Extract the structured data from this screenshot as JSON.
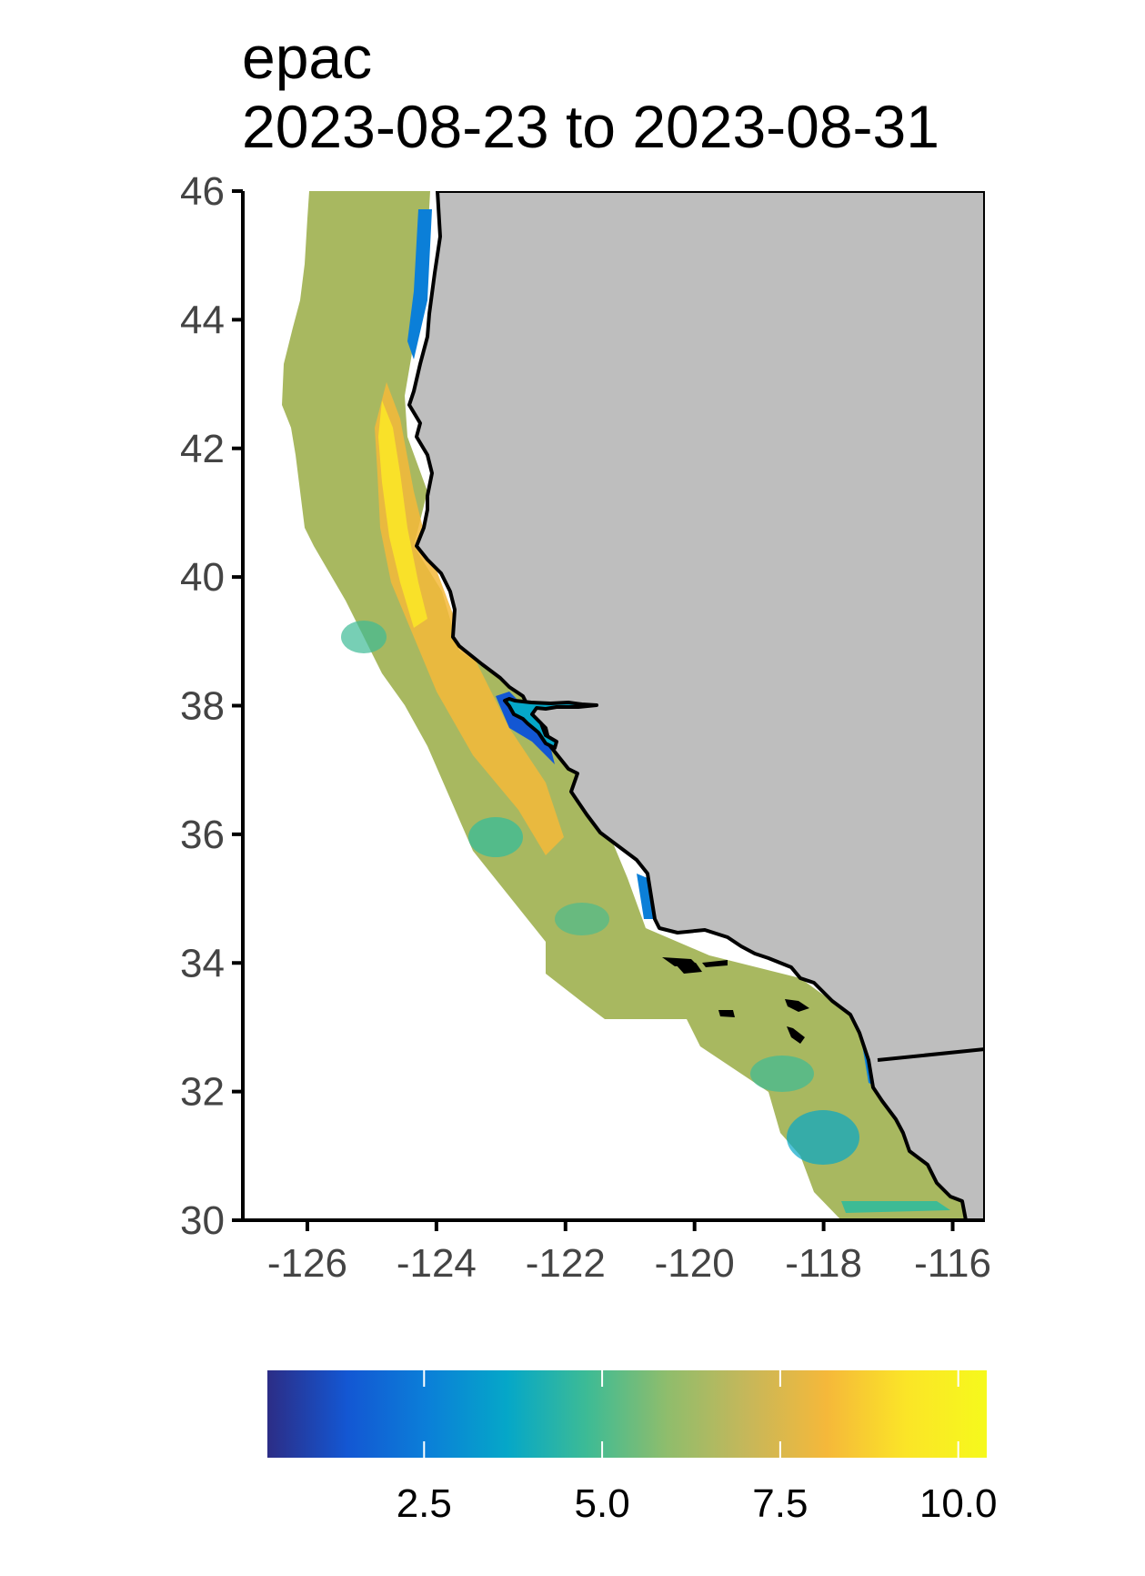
{
  "title": {
    "line1": "epac",
    "line2": "2023-08-23 to 2023-08-31"
  },
  "map": {
    "lon_range": [
      -127.0,
      -115.5
    ],
    "lat_range": [
      30,
      46
    ],
    "land_color": "#bebebe",
    "coast_color": "#000000",
    "x_ticks": [
      {
        "value": -126,
        "label": "-126"
      },
      {
        "value": -124,
        "label": "-124"
      },
      {
        "value": -122,
        "label": "-122"
      },
      {
        "value": -120,
        "label": "-120"
      },
      {
        "value": -118,
        "label": "-118"
      },
      {
        "value": -116,
        "label": "-116"
      }
    ],
    "y_ticks": [
      {
        "value": 30,
        "label": "30"
      },
      {
        "value": 32,
        "label": "32"
      },
      {
        "value": 34,
        "label": "34"
      },
      {
        "value": 36,
        "label": "36"
      },
      {
        "value": 38,
        "label": "38"
      },
      {
        "value": 40,
        "label": "40"
      },
      {
        "value": 42,
        "label": "42"
      },
      {
        "value": 44,
        "label": "44"
      },
      {
        "value": 46,
        "label": "46"
      }
    ]
  },
  "colorbar": {
    "min": 0.3,
    "max": 10.4,
    "colors": [
      "#2c2d86",
      "#1357d3",
      "#0b7fd8",
      "#05a7c8",
      "#3dbb95",
      "#8fbd6c",
      "#c6b75a",
      "#f5b83a",
      "#fbe527",
      "#f6f91c"
    ],
    "ticks": [
      {
        "value": 2.5,
        "label": "2.5"
      },
      {
        "value": 5.0,
        "label": "5.0"
      },
      {
        "value": 7.5,
        "label": "7.5"
      },
      {
        "value": 10.0,
        "label": "10.0"
      }
    ]
  }
}
